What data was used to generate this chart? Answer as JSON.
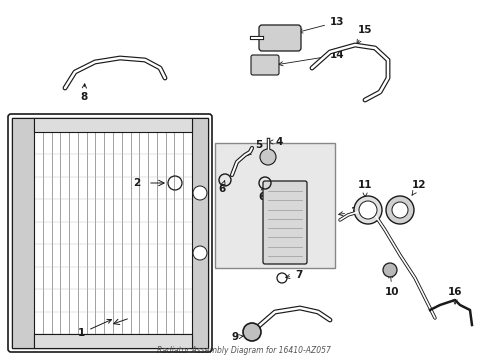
{
  "bg_color": "#ffffff",
  "line_color": "#1a1a1a",
  "fig_width": 4.89,
  "fig_height": 3.6,
  "dpi": 100,
  "subtitle": "Radiator Assembly Diagram for 16410-AZ057"
}
